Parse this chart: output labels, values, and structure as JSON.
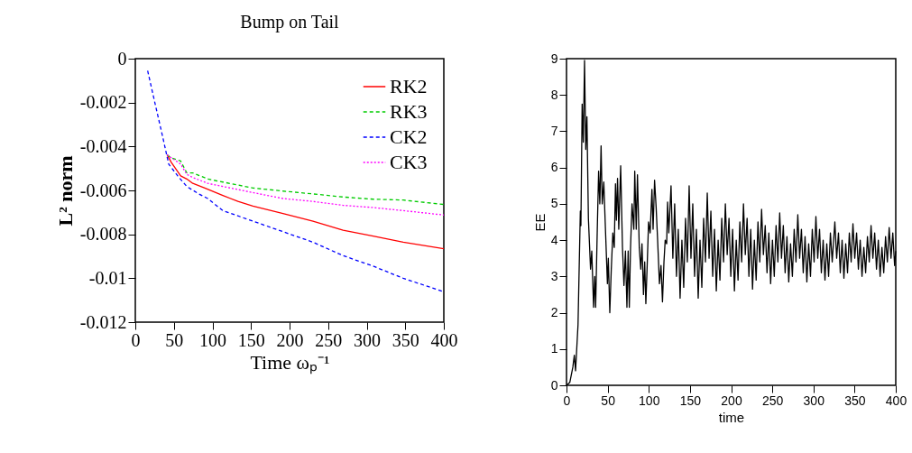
{
  "chart_data": [
    {
      "type": "line",
      "title": "Bump on Tail",
      "xlabel": "Time ωₚ⁻¹",
      "ylabel": "L² norm",
      "xlim": [
        0,
        400
      ],
      "ylim": [
        -0.012,
        0
      ],
      "xticks": [
        0,
        50,
        100,
        150,
        200,
        250,
        300,
        350,
        400
      ],
      "yticks": [
        0,
        -0.002,
        -0.004,
        -0.006,
        -0.008,
        -0.01,
        -0.012
      ],
      "legend": "top right",
      "series": [
        {
          "name": "RK2",
          "color": "#ff0000",
          "line_style": "solid",
          "x": [
            41.3,
            46.8,
            58.8,
            66.7,
            74.5,
            90.1,
            113.5,
            133,
            152.5,
            191.5,
            230.4,
            269.4,
            308.4,
            347.4,
            400
          ],
          "values": [
            -0.00438,
            -0.00473,
            -0.00534,
            -0.00548,
            -0.00568,
            -0.00589,
            -0.00623,
            -0.0065,
            -0.00671,
            -0.00705,
            -0.0074,
            -0.00781,
            -0.00808,
            -0.00836,
            -0.00866
          ]
        },
        {
          "name": "RK3",
          "color": "#00cc00",
          "line_style": "dashed",
          "x": [
            41.3,
            46.8,
            58.8,
            66.7,
            74.5,
            93.9,
            113.5,
            152.5,
            191.5,
            230.4,
            269.4,
            308.4,
            347.4,
            400
          ],
          "values": [
            -0.00438,
            -0.00452,
            -0.00466,
            -0.0052,
            -0.0052,
            -0.00548,
            -0.00562,
            -0.00589,
            -0.00603,
            -0.00616,
            -0.0063,
            -0.0064,
            -0.00644,
            -0.00664
          ]
        },
        {
          "name": "CK2",
          "color": "#0000ff",
          "line_style": "dashed",
          "x": [
            16,
            25.7,
            35.5,
            43.3,
            55,
            66.7,
            82.3,
            93.9,
            113.5,
            152.5,
            191.5,
            230.4,
            269.4,
            308.4,
            347.4,
            400
          ],
          "values": [
            -0.00055,
            -0.00206,
            -0.00356,
            -0.0048,
            -0.00534,
            -0.00582,
            -0.00616,
            -0.00637,
            -0.00692,
            -0.0074,
            -0.00788,
            -0.00836,
            -0.00897,
            -0.00945,
            -0.01,
            -0.01062
          ]
        },
        {
          "name": "CK3",
          "color": "#ff00ff",
          "line_style": "dotted",
          "x": [
            41.3,
            46.8,
            58.8,
            66.7,
            74.5,
            93.9,
            113.5,
            152.5,
            191.5,
            230.4,
            269.4,
            308.4,
            347.4,
            400
          ],
          "values": [
            -0.00438,
            -0.00452,
            -0.0048,
            -0.00527,
            -0.00541,
            -0.00568,
            -0.00582,
            -0.0061,
            -0.00637,
            -0.0065,
            -0.00668,
            -0.00678,
            -0.00692,
            -0.00712
          ]
        }
      ]
    },
    {
      "type": "line",
      "xlabel": "time",
      "ylabel": "EE",
      "xlim": [
        0,
        400
      ],
      "ylim": [
        0,
        9
      ],
      "xticks": [
        0,
        50,
        100,
        150,
        200,
        250,
        300,
        350,
        400
      ],
      "yticks": [
        0,
        1,
        2,
        3,
        4,
        5,
        6,
        7,
        8,
        9
      ],
      "series": [
        {
          "color": "#000000",
          "line_style": "solid",
          "x": [
            0,
            4,
            7.7,
            9.5,
            11,
            14,
            16.8,
            17.5,
            19,
            20.4,
            21.9,
            23.4,
            24.8,
            26.6,
            29.2,
            30.7,
            32.9,
            34.3,
            35.4,
            37.2,
            39,
            40.5,
            42,
            43.4,
            45.3,
            47,
            49.7,
            50.8,
            52.6,
            54.4,
            56.3,
            58,
            59.5,
            60.6,
            62,
            63.5,
            65.8,
            68,
            69.8,
            71.6,
            73.4,
            74.9,
            76.3,
            77.8,
            79.6,
            81.8,
            82.9,
            84.7,
            86.2,
            88.4,
            90.2,
            91.7,
            93.5,
            95,
            96.4,
            98.3,
            99.7,
            101.6,
            103.8,
            105.2,
            107,
            108.9,
            110.7,
            112.9,
            114.8,
            116.6,
            118.4,
            119.9,
            121.7,
            122.8,
            124.3,
            127,
            129.2,
            131.4,
            133.6,
            135.8,
            138,
            140.2,
            142.4,
            144.6,
            146.8,
            149,
            151.2,
            153.4,
            155.6,
            157.8,
            160,
            162.2,
            164.4,
            166.6,
            168.8,
            171,
            173.2,
            175.4,
            177.6,
            179.8,
            182,
            184.2,
            186.4,
            188.6,
            190.8,
            193,
            195.2,
            197.4,
            199.6,
            201.8,
            204,
            206.2,
            208.4,
            210.6,
            212.8,
            215,
            217.2,
            219.4,
            221.6,
            223.8,
            226,
            228.2,
            230.4,
            232.6,
            234.8,
            237,
            239.2,
            241.4,
            243.6,
            245.8,
            248,
            250.2,
            252.4,
            254.6,
            256.8,
            259,
            261.2,
            263.4,
            265.6,
            267.8,
            270,
            272.2,
            274.4,
            276.6,
            278.8,
            281,
            283.2,
            285.4,
            287.6,
            289.8,
            292,
            294.2,
            296.4,
            298.6,
            300.8,
            303,
            305.2,
            307.4,
            309.6,
            311.8,
            314,
            316.2,
            318.4,
            320.6,
            322.8,
            326,
            328.2,
            330.4,
            332.6,
            334.8,
            337,
            339.2,
            341.4,
            343.6,
            345.8,
            348,
            350.2,
            352.4,
            354.6,
            356.8,
            359,
            361.2,
            363.4,
            365.6,
            367.8,
            370,
            372.2,
            374.4,
            376.6,
            378.8,
            381,
            383.2,
            385.4,
            387.6,
            389.8,
            392,
            394.2,
            396.4,
            398.6,
            400
          ],
          "values": [
            0,
            0.08,
            0.5,
            0.83,
            0.4,
            1.67,
            4.8,
            4.4,
            7.75,
            6.7,
            8.95,
            6.5,
            7.4,
            4.6,
            3.2,
            3.7,
            2.15,
            3,
            2.15,
            4.1,
            5.9,
            5,
            6.6,
            5,
            5.6,
            4.5,
            2.8,
            3.5,
            2,
            3.2,
            4.2,
            3.8,
            5.55,
            4.55,
            5.7,
            4.3,
            6.05,
            3.8,
            2.75,
            3.7,
            2.15,
            3.7,
            2.15,
            3.8,
            5,
            4.3,
            5.9,
            4.3,
            5.8,
            3.8,
            3.2,
            3.9,
            2.5,
            3.4,
            2.25,
            3.5,
            4.5,
            4.2,
            5.4,
            4.3,
            5.65,
            4.9,
            4,
            2.8,
            3.3,
            2.3,
            3.4,
            4,
            3.9,
            5.05,
            4.2,
            5.5,
            3.5,
            5,
            3,
            4.3,
            2.4,
            4,
            2.7,
            4.6,
            3.4,
            5.5,
            3.5,
            5,
            3,
            4.3,
            2.4,
            4,
            2.7,
            4.6,
            3.4,
            5.3,
            3.5,
            4.8,
            3,
            4.3,
            2.6,
            4,
            2.9,
            4.6,
            3.4,
            5,
            3.6,
            4.6,
            3,
            4.3,
            2.6,
            4,
            2.9,
            4.5,
            3.4,
            5,
            3.6,
            4.6,
            3,
            4.3,
            2.65,
            4,
            2.9,
            4.5,
            3.4,
            4.85,
            3.6,
            4.4,
            3.1,
            4.2,
            2.8,
            4,
            3,
            4.4,
            3.4,
            4.75,
            3.5,
            4.4,
            3.1,
            4.1,
            2.85,
            3.9,
            3,
            4.3,
            3.4,
            4.7,
            3.5,
            4.3,
            3.1,
            4.1,
            2.85,
            3.9,
            3,
            4.3,
            3.4,
            4.65,
            3.5,
            4.3,
            3.1,
            4,
            2.9,
            3.9,
            3,
            4.2,
            3.4,
            4.5,
            3.5,
            4.2,
            3.1,
            4,
            2.95,
            3.9,
            3.1,
            4.2,
            3.4,
            4.45,
            3.5,
            4.2,
            3.2,
            4,
            3,
            3.8,
            3.1,
            4.1,
            3.4,
            4.4,
            3.5,
            4.2,
            3.2,
            4,
            3,
            3.8,
            3.1,
            4.1,
            3.4,
            4.35,
            3.5,
            4.2,
            3.3,
            3.7
          ]
        }
      ]
    }
  ]
}
